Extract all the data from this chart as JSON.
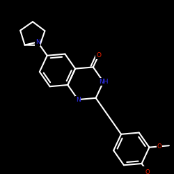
{
  "background_color": "#000000",
  "bond_color": "#ffffff",
  "N_color": "#3333ff",
  "O_color": "#ff2200",
  "lw": 1.5,
  "fs": 6.5,
  "scale": 0.28,
  "rotation_deg": 30,
  "xlim": [
    -1.3,
    1.3
  ],
  "ylim": [
    -1.3,
    1.3
  ]
}
